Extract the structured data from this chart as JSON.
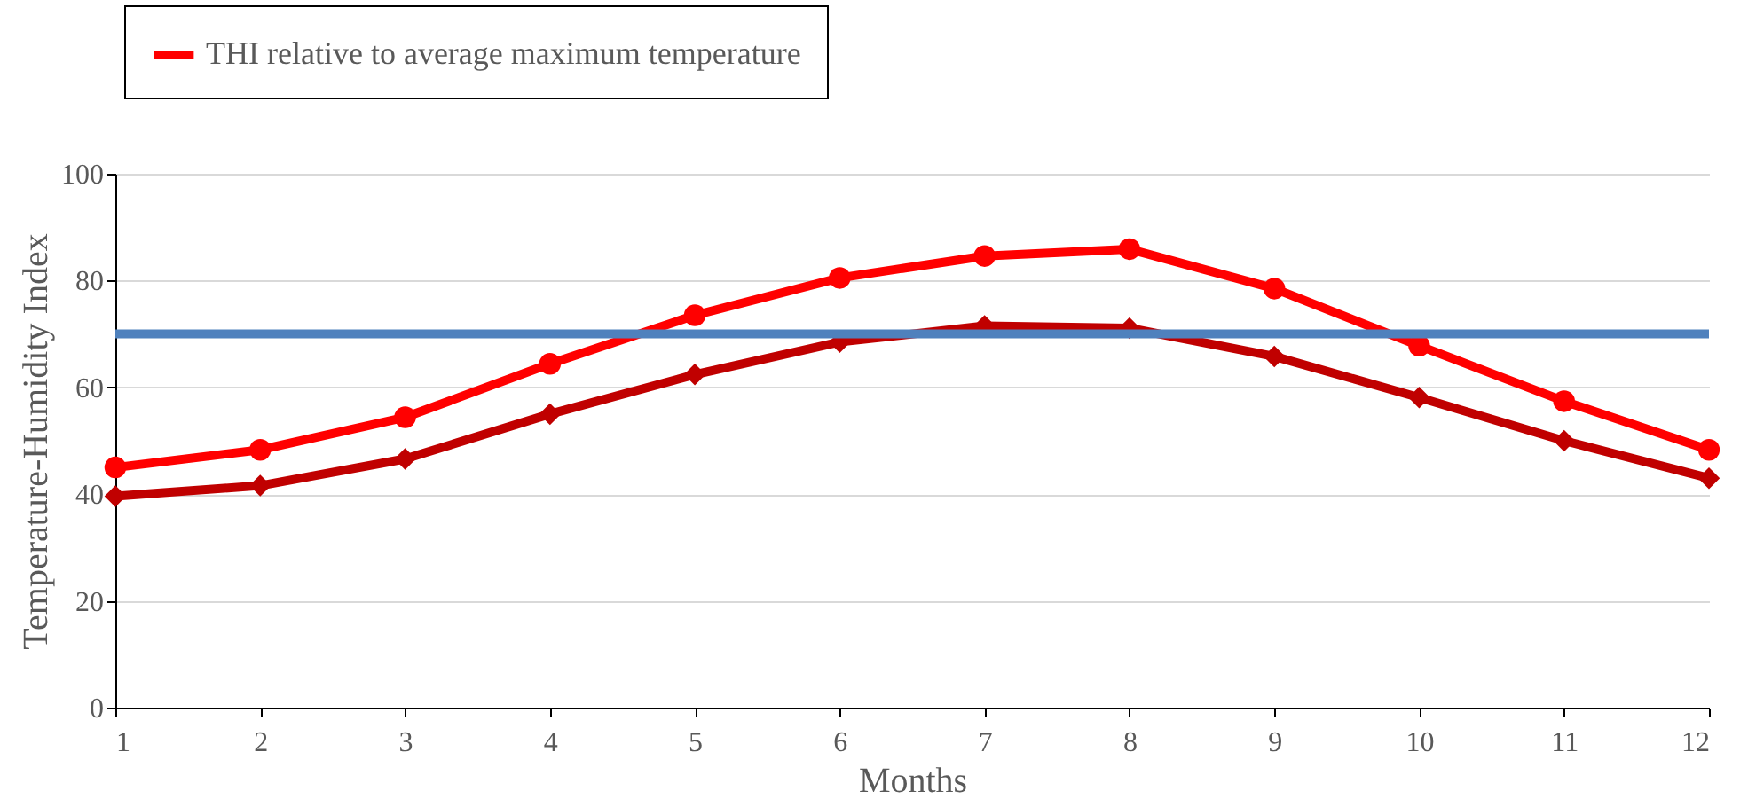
{
  "chart_data": {
    "type": "line",
    "xlabel": "Months",
    "ylabel": "Temperature-Humidity Index",
    "x": [
      1,
      2,
      3,
      4,
      5,
      6,
      7,
      8,
      9,
      10,
      11,
      12
    ],
    "series": [
      {
        "name": "THI relative to average maximum temperature",
        "color": "#ff0000",
        "marker": "circle",
        "values": [
          45.0,
          48.3,
          54.4,
          64.4,
          73.5,
          80.5,
          84.6,
          85.9,
          78.5,
          67.8,
          57.4,
          48.3
        ]
      },
      {
        "color": "#c00000",
        "marker": "diamond",
        "values": [
          39.6,
          41.6,
          46.6,
          55.0,
          62.4,
          68.5,
          71.5,
          71.1,
          65.8,
          58.1,
          50.0,
          43.0
        ]
      }
    ],
    "ref_lines": [
      {
        "axis": "y",
        "value": 70,
        "color": "#4f81bd"
      }
    ],
    "xlim": [
      1,
      12
    ],
    "xticks": [
      1,
      2,
      3,
      4,
      5,
      6,
      7,
      8,
      9,
      10,
      11,
      12
    ],
    "ylim": [
      0,
      100
    ],
    "yticks": [
      0,
      20,
      40,
      60,
      80,
      100
    ],
    "grid": "y",
    "legend": "top left",
    "line_style": "solid"
  }
}
